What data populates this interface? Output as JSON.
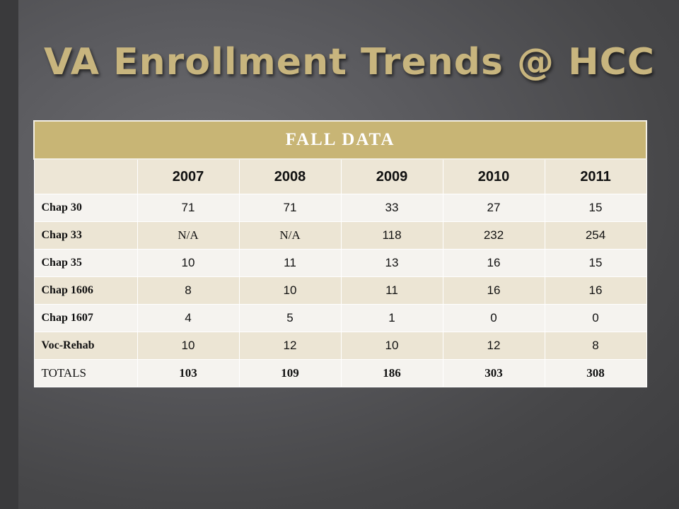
{
  "title": "VA Enrollment Trends @ HCC",
  "table": {
    "header": "FALL DATA",
    "years": [
      "2007",
      "2008",
      "2009",
      "2010",
      "2011"
    ],
    "rows": [
      {
        "label": "Chap 30",
        "values": [
          "71",
          "71",
          "33",
          "27",
          "15"
        ]
      },
      {
        "label": "Chap 33",
        "values": [
          "N/A",
          "N/A",
          "118",
          "232",
          "254"
        ]
      },
      {
        "label": "Chap 35",
        "values": [
          "10",
          "11",
          "13",
          "16",
          "15"
        ]
      },
      {
        "label": "Chap 1606",
        "values": [
          "8",
          "10",
          "11",
          "16",
          "16"
        ]
      },
      {
        "label": "Chap 1607",
        "values": [
          "4",
          "5",
          "1",
          "0",
          "0"
        ]
      },
      {
        "label": "Voc-Rehab",
        "values": [
          "10",
          "12",
          "10",
          "12",
          "8"
        ]
      },
      {
        "label": "TOTALS",
        "values": [
          "103",
          "109",
          "186",
          "303",
          "308"
        ]
      }
    ]
  },
  "colors": {
    "title": "#c8b57e",
    "header_bg": "#c8b575",
    "row_light": "#f5f3ef",
    "row_tan": "#ece5d4"
  }
}
